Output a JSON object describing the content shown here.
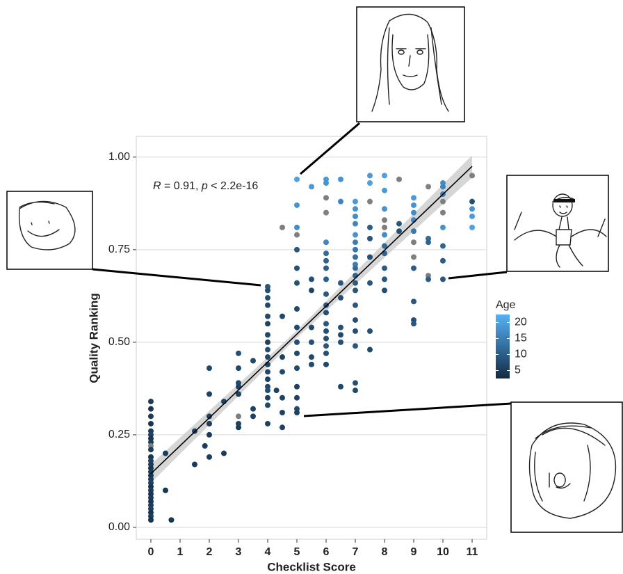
{
  "chart_data": {
    "type": "scatter",
    "x_label": "Checklist Score",
    "y_label": "Quality Ranking",
    "xlim": [
      -0.5,
      11.5
    ],
    "ylim": [
      -0.032,
      1.056
    ],
    "xticks": [
      0,
      1,
      2,
      3,
      4,
      5,
      6,
      7,
      8,
      9,
      10,
      11
    ],
    "yticks": [
      {
        "value": 0,
        "label": "0.00"
      },
      {
        "value": 0.25,
        "label": "0.25"
      },
      {
        "value": 0.5,
        "label": "0.50"
      },
      {
        "value": 0.75,
        "label": "0.75"
      },
      {
        "value": 1,
        "label": "1.00"
      }
    ],
    "grid": true,
    "annotation": [
      {
        "text": "R",
        "italic": true
      },
      {
        "text": " = 0.91, ",
        "italic": false
      },
      {
        "text": "p",
        "italic": true
      },
      {
        "text": " < 2.2e-16",
        "italic": false
      }
    ],
    "fit": {
      "x": [
        0,
        5,
        11
      ],
      "y": [
        0.145,
        0.522,
        0.975
      ],
      "lower": [
        0.12,
        0.512,
        0.945
      ],
      "upper": [
        0.17,
        0.532,
        1.005
      ],
      "color": "#000000",
      "band_color": "#cccccc"
    },
    "legend_title": "Age",
    "colorscale": [
      "#132B43",
      "#56B1F7"
    ],
    "na_color": "#7f7f7f",
    "colorbar_lim": [
      2.5,
      22.5
    ],
    "colorbar_ticks": [
      5,
      10,
      15,
      20
    ],
    "series": [
      {
        "x": [
          0,
          0,
          0,
          0,
          0,
          0,
          0,
          0,
          0,
          0,
          0,
          0,
          0,
          0,
          0,
          0,
          0,
          0,
          0,
          0,
          0,
          0,
          0,
          0,
          0,
          0,
          0,
          0,
          0.5,
          0.5,
          0.7,
          1.5,
          1.5,
          1.85,
          2,
          2,
          2,
          2,
          2,
          2,
          2.5,
          2.5,
          3,
          3,
          3,
          3,
          3,
          3,
          3,
          3,
          3.5,
          3.5,
          3.5,
          4,
          4,
          4,
          4,
          4,
          4,
          4,
          4,
          4,
          4,
          4,
          4,
          4,
          4,
          4,
          4,
          4,
          4,
          4.3,
          4.5,
          4.5,
          4.5,
          4.5,
          4.5,
          4.5,
          4.5,
          5,
          5,
          5,
          5,
          5,
          5,
          5,
          5,
          5,
          5,
          5,
          5,
          5,
          5,
          5,
          5,
          5.5,
          5.5,
          5.5,
          5.5,
          5.5,
          5.5,
          5.5,
          6,
          6,
          6,
          6,
          6,
          6,
          6,
          6,
          6,
          6,
          6,
          6,
          6,
          6,
          6,
          6,
          6,
          6,
          6.5,
          6.5,
          6.5,
          6.5,
          6.5,
          6.5,
          6.5,
          6.5,
          7,
          7,
          7,
          7,
          7,
          7,
          7,
          7,
          7,
          7,
          7,
          7,
          7,
          7,
          7,
          7,
          7,
          7,
          7,
          7.5,
          7.5,
          7.5,
          7.5,
          7.5,
          7.5,
          7.5,
          7.5,
          7.5,
          8,
          8,
          8,
          8,
          8,
          8,
          8,
          8,
          8,
          8,
          8,
          8.5,
          8.5,
          8.5,
          9,
          9,
          9,
          9,
          9,
          9,
          9,
          9,
          9,
          9,
          9,
          9.5,
          9.5,
          9.5,
          9.5,
          9.5,
          10,
          10,
          10,
          10,
          10,
          10,
          10,
          10,
          10,
          11,
          11,
          11,
          11,
          11
        ],
        "values": [
          0.34,
          0.32,
          0.3,
          0.28,
          0.26,
          0.25,
          0.24,
          0.23,
          0.22,
          0.21,
          0.19,
          0.18,
          0.17,
          0.16,
          0.15,
          0.14,
          0.13,
          0.12,
          0.11,
          0.1,
          0.09,
          0.08,
          0.07,
          0.06,
          0.05,
          0.04,
          0.03,
          0.02,
          0.2,
          0.1,
          0.02,
          0.26,
          0.17,
          0.22,
          0.43,
          0.36,
          0.3,
          0.28,
          0.25,
          0.19,
          0.34,
          0.2,
          0.47,
          0.43,
          0.39,
          0.38,
          0.36,
          0.3,
          0.28,
          0.27,
          0.45,
          0.32,
          0.3,
          0.65,
          0.64,
          0.62,
          0.6,
          0.57,
          0.55,
          0.52,
          0.5,
          0.48,
          0.46,
          0.44,
          0.42,
          0.4,
          0.38,
          0.37,
          0.35,
          0.33,
          0.28,
          0.37,
          0.81,
          0.57,
          0.46,
          0.42,
          0.35,
          0.31,
          0.27,
          0.94,
          0.87,
          0.81,
          0.79,
          0.75,
          0.7,
          0.66,
          0.59,
          0.54,
          0.5,
          0.47,
          0.43,
          0.38,
          0.35,
          0.32,
          0.31,
          0.92,
          0.67,
          0.64,
          0.54,
          0.5,
          0.46,
          0.44,
          0.94,
          0.93,
          0.89,
          0.85,
          0.77,
          0.74,
          0.72,
          0.7,
          0.67,
          0.63,
          0.6,
          0.58,
          0.55,
          0.53,
          0.51,
          0.49,
          0.47,
          0.44,
          0.94,
          0.88,
          0.66,
          0.62,
          0.54,
          0.52,
          0.5,
          0.38,
          0.88,
          0.86,
          0.84,
          0.82,
          0.79,
          0.77,
          0.75,
          0.73,
          0.71,
          0.7,
          0.68,
          0.66,
          0.64,
          0.6,
          0.56,
          0.53,
          0.49,
          0.39,
          0.37,
          0.95,
          0.93,
          0.88,
          0.81,
          0.78,
          0.73,
          0.66,
          0.53,
          0.48,
          0.95,
          0.91,
          0.86,
          0.83,
          0.81,
          0.79,
          0.76,
          0.74,
          0.7,
          0.67,
          0.64,
          0.94,
          0.82,
          0.8,
          0.89,
          0.87,
          0.85,
          0.83,
          0.8,
          0.77,
          0.73,
          0.7,
          0.61,
          0.56,
          0.55,
          0.92,
          0.78,
          0.77,
          0.68,
          0.67,
          0.93,
          0.92,
          0.9,
          0.88,
          0.85,
          0.81,
          0.76,
          0.72,
          0.67,
          0.95,
          0.88,
          0.86,
          0.84,
          0.81
        ],
        "age": [
          5,
          4,
          5,
          4,
          5,
          6,
          4,
          5,
          null,
          5,
          4,
          6,
          5,
          4,
          5,
          4,
          5,
          6,
          4,
          5,
          4,
          5,
          4,
          5,
          6,
          4,
          5,
          4,
          5,
          4,
          4,
          6,
          5,
          5,
          7,
          6,
          6,
          5,
          5,
          5,
          6,
          5,
          8,
          7,
          7,
          6,
          6,
          null,
          6,
          5,
          7,
          6,
          6,
          9,
          8,
          8,
          7,
          7,
          6,
          7,
          6,
          8,
          7,
          6,
          7,
          6,
          7,
          8,
          6,
          7,
          6,
          6,
          null,
          7,
          6,
          7,
          6,
          6,
          6,
          20,
          18,
          17,
          null,
          9,
          8,
          8,
          7,
          7,
          8,
          7,
          7,
          6,
          6,
          7,
          6,
          19,
          8,
          7,
          7,
          8,
          7,
          7,
          19,
          18,
          null,
          null,
          16,
          12,
          11,
          10,
          10,
          9,
          9,
          8,
          9,
          8,
          8,
          9,
          8,
          7,
          18,
          16,
          9,
          8,
          8,
          7,
          8,
          7,
          19,
          18,
          17,
          16,
          18,
          15,
          14,
          13,
          15,
          12,
          11,
          10,
          9,
          9,
          8,
          8,
          9,
          8,
          7,
          19,
          20,
          null,
          10,
          9,
          8,
          9,
          8,
          7,
          20,
          19,
          18,
          null,
          null,
          17,
          12,
          11,
          10,
          9,
          8,
          null,
          9,
          8,
          19,
          18,
          17,
          16,
          14,
          null,
          null,
          10,
          9,
          8,
          9,
          null,
          12,
          11,
          null,
          10,
          17,
          16,
          15,
          null,
          null,
          18,
          11,
          10,
          9,
          null,
          8,
          18,
          19,
          20
        ]
      }
    ]
  }
}
